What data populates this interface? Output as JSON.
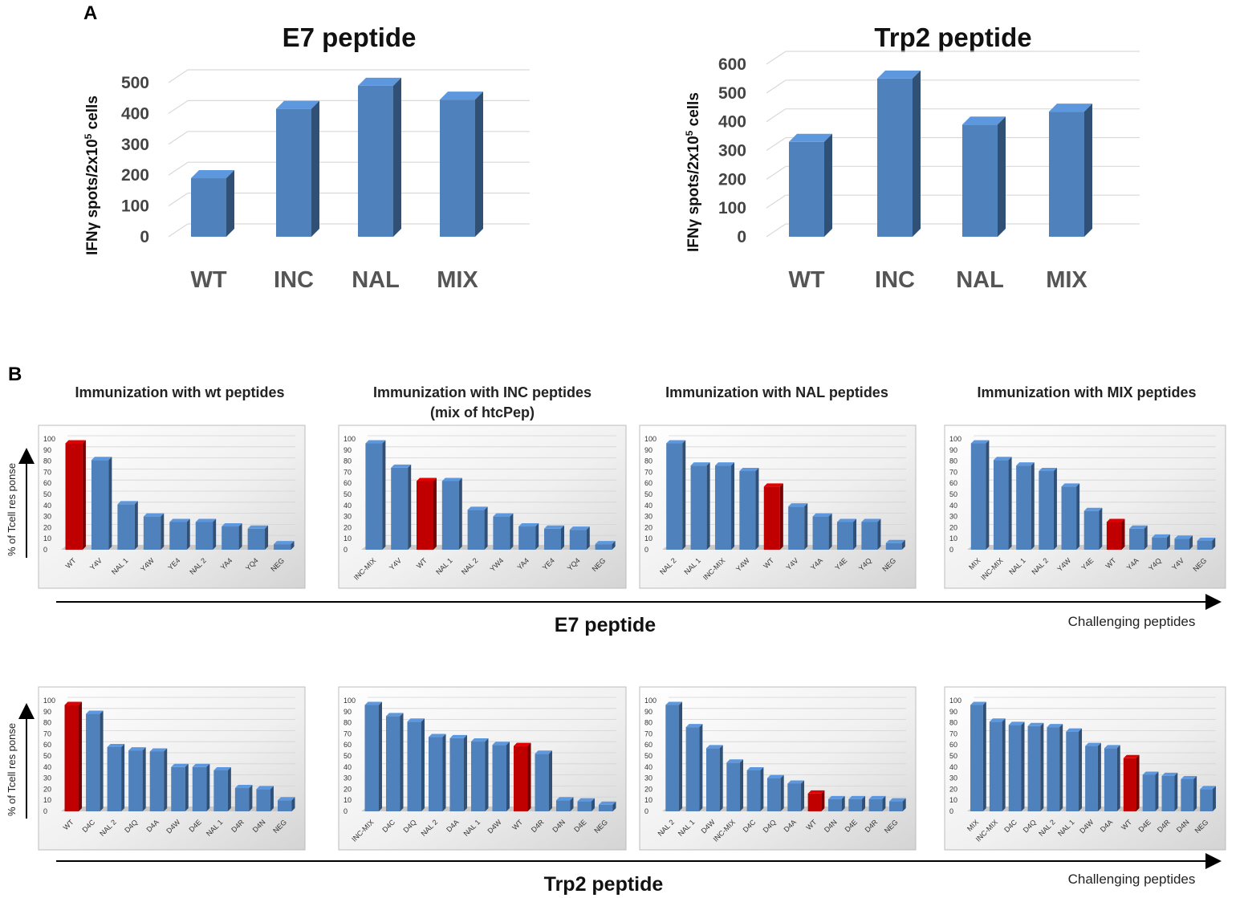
{
  "panel_a_label": "A",
  "panel_b_label": "B",
  "panel_a_ylabel_prefix": "IFNγ spots/2x10",
  "panel_a_ylabel_exp": "5",
  "panel_a_ylabel_suffix": " cells",
  "subplot_titles": [
    "Immunization  with wt peptides",
    "Immunization   with INC peptides",
    "Immunization  with NAL peptides",
    "Immunization  with MIX  peptides"
  ],
  "subplot_title2_line2": "(mix of htcPep)",
  "panel_b_ylabel": "% of Tcell res ponse",
  "row_labels": [
    "E7 peptide",
    "Trp2 peptide"
  ],
  "axis_caption": "Challenging peptides",
  "colors": {
    "bar": "#4f81bd",
    "bar_highlight": "#c00000",
    "grid": "#d9d9d9"
  },
  "chart_data": [
    {
      "type": "bar",
      "title": "E7 peptide",
      "categories": [
        "WT",
        "INC",
        "NAL",
        "MIX"
      ],
      "values": [
        190,
        415,
        490,
        445
      ],
      "ylim": [
        0,
        500
      ],
      "yticks": [
        0,
        100,
        200,
        300,
        400,
        500
      ],
      "ylabel": "IFNγ spots/2x10^5 cells"
    },
    {
      "type": "bar",
      "title": "Trp2 peptide",
      "categories": [
        "WT",
        "INC",
        "NAL",
        "MIX"
      ],
      "values": [
        330,
        550,
        390,
        435
      ],
      "ylim": [
        0,
        600
      ],
      "yticks": [
        0,
        100,
        200,
        300,
        400,
        500,
        600
      ],
      "ylabel": "IFNγ spots/2x10^5 cells"
    },
    {
      "type": "bar",
      "title": "E7 – Immunization with wt peptides",
      "categories": [
        "WT",
        "Y4V",
        "NAL 1",
        "Y4W",
        "YE4",
        "NAL 2",
        "YA4",
        "YQ4",
        "NEG"
      ],
      "values": [
        96,
        81,
        41,
        30,
        25,
        25,
        21,
        19,
        5
      ],
      "highlight": "WT",
      "ylim": [
        0,
        100
      ],
      "ylabel": "% of Tcell res ponse"
    },
    {
      "type": "bar",
      "title": "E7 – Immunization with INC peptides (mix of htcPep)",
      "categories": [
        "INC-MIX",
        "Y4V",
        "WT",
        "NAL 1",
        "NAL 2",
        "YW4",
        "YA4",
        "YE4",
        "YQ4",
        "NEG"
      ],
      "values": [
        96,
        74,
        62,
        62,
        36,
        30,
        21,
        19,
        18,
        5
      ],
      "highlight": "WT",
      "ylim": [
        0,
        100
      ],
      "ylabel": "% of Tcell res ponse"
    },
    {
      "type": "bar",
      "title": "E7 – Immunization with NAL peptides",
      "categories": [
        "NAL 2",
        "NAL 1",
        "INC-MIX",
        "Y4W",
        "WT",
        "Y4V",
        "Y4A",
        "Y4E",
        "Y4Q",
        "NEG"
      ],
      "values": [
        96,
        76,
        76,
        71,
        57,
        39,
        30,
        25,
        25,
        6
      ],
      "highlight": "WT",
      "ylim": [
        0,
        100
      ],
      "ylabel": "% of Tcell res ponse"
    },
    {
      "type": "bar",
      "title": "E7 – Immunization with MIX peptides",
      "categories": [
        "MIX",
        "INC-MIX",
        "NAL 1",
        "NAL 2",
        "Y4W",
        "Y4E",
        "WT",
        "Y4A",
        "Y4Q",
        "Y4V",
        "NEG"
      ],
      "values": [
        96,
        81,
        76,
        71,
        57,
        35,
        25,
        19,
        11,
        10,
        8
      ],
      "highlight": "WT",
      "ylim": [
        0,
        100
      ],
      "ylabel": "% of Tcell res ponse"
    },
    {
      "type": "bar",
      "title": "Trp2 – Immunization with wt peptides",
      "categories": [
        "WT",
        "D4C",
        "NAL 2",
        "D4Q",
        "D4A",
        "D4W",
        "D4E",
        "NAL 1",
        "D4R",
        "D4N",
        "NEG"
      ],
      "values": [
        96,
        88,
        58,
        55,
        54,
        40,
        40,
        37,
        21,
        20,
        10
      ],
      "highlight": "WT",
      "ylim": [
        0,
        100
      ],
      "ylabel": "% of Tcell res ponse"
    },
    {
      "type": "bar",
      "title": "Trp2 – Immunization with INC peptides (mix of htcPep)",
      "categories": [
        "INC-MIX",
        "D4C",
        "D4Q",
        "NAL 2",
        "D4A",
        "NAL 1",
        "D4W",
        "WT",
        "D4R",
        "D4N",
        "D4E",
        "NEG"
      ],
      "values": [
        96,
        86,
        81,
        67,
        66,
        63,
        60,
        59,
        52,
        10,
        9,
        6
      ],
      "highlight": "WT",
      "ylim": [
        0,
        100
      ],
      "ylabel": "% of Tcell res ponse"
    },
    {
      "type": "bar",
      "title": "Trp2 – Immunization with NAL peptides",
      "categories": [
        "NAL 2",
        "NAL 1",
        "D4W",
        "INC-MIX",
        "D4C",
        "D4Q",
        "D4A",
        "WT",
        "D4N",
        "D4E",
        "D4R",
        "NEG"
      ],
      "values": [
        96,
        76,
        57,
        44,
        37,
        30,
        25,
        16,
        11,
        11,
        11,
        9
      ],
      "highlight": "WT",
      "ylim": [
        0,
        100
      ],
      "ylabel": "% of Tcell res ponse"
    },
    {
      "type": "bar",
      "title": "Trp2 – Immunization with MIX peptides",
      "categories": [
        "MIX",
        "INC-MIX",
        "D4C",
        "D4Q",
        "NAL 2",
        "NAL 1",
        "D4W",
        "D4A",
        "WT",
        "D4E",
        "D4R",
        "D4N",
        "NEG"
      ],
      "values": [
        96,
        81,
        78,
        77,
        76,
        72,
        59,
        57,
        48,
        33,
        32,
        29,
        20
      ],
      "highlight": "WT",
      "ylim": [
        0,
        100
      ],
      "ylabel": "% of Tcell res ponse"
    }
  ]
}
